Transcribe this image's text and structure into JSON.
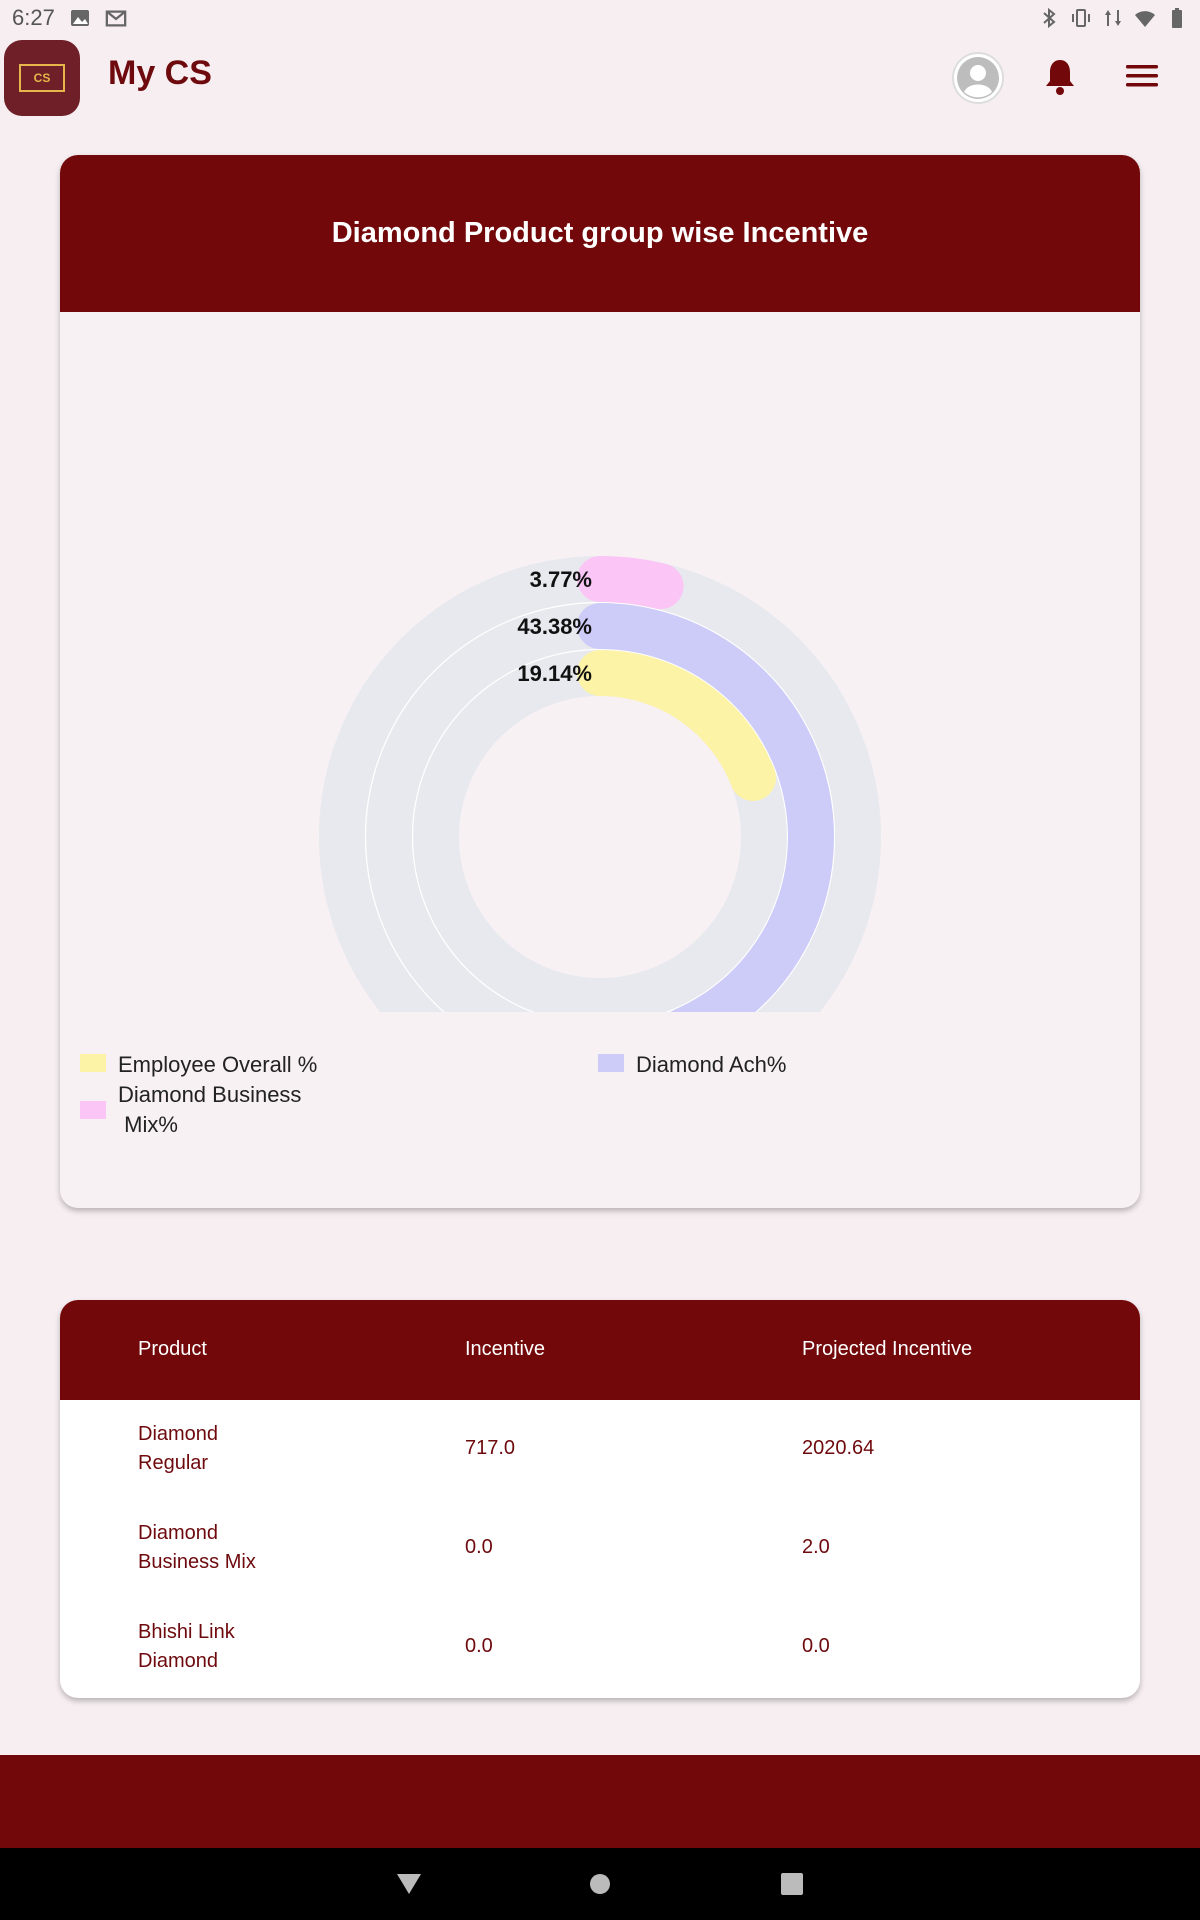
{
  "status_bar": {
    "time": "6:27"
  },
  "app_bar": {
    "logo_text": "CS",
    "title": "My CS"
  },
  "chart_card": {
    "title": "Diamond Product group wise Incentive",
    "chart_data": {
      "type": "radialBar",
      "max": 100,
      "series": [
        {
          "name": "Diamond Business Mix%",
          "value": 3.77,
          "label": "3.77%",
          "color": "#fbc6f6"
        },
        {
          "name": "Diamond Ach%",
          "value": 43.38,
          "label": "43.38%",
          "color": "#cdccf9"
        },
        {
          "name": "Employee Overall %",
          "value": 19.14,
          "label": "19.14%",
          "color": "#fdf3a7"
        }
      ],
      "track_color": "#e7e9ee"
    },
    "legend": [
      {
        "label": "Employee Overall %",
        "color": "#fdf3a7"
      },
      {
        "label": "Diamond Ach%",
        "color": "#cdccf9"
      },
      {
        "label": "Diamond Business\n Mix%",
        "color": "#fbc6f6"
      }
    ]
  },
  "table": {
    "headers": [
      "Product",
      "Incentive",
      "Projected Incentive"
    ],
    "rows": [
      {
        "product": "Diamond\nRegular",
        "incentive": "717.0",
        "projected": "2020.64"
      },
      {
        "product": "Diamond\nBusiness Mix",
        "incentive": "0.0",
        "projected": "2.0"
      },
      {
        "product": "Bhishi Link\nDiamond",
        "incentive": "0.0",
        "projected": "0.0"
      }
    ]
  },
  "colors": {
    "brand": "#72080a",
    "background": "#f6eef0",
    "text_brand": "#6e0a0d"
  },
  "icons": {
    "avatar": "person-icon",
    "notifications": "bell-icon",
    "menu": "hamburger-icon",
    "nav_back": "triangle-back-icon",
    "nav_home": "circle-home-icon",
    "nav_recents": "square-recents-icon"
  }
}
